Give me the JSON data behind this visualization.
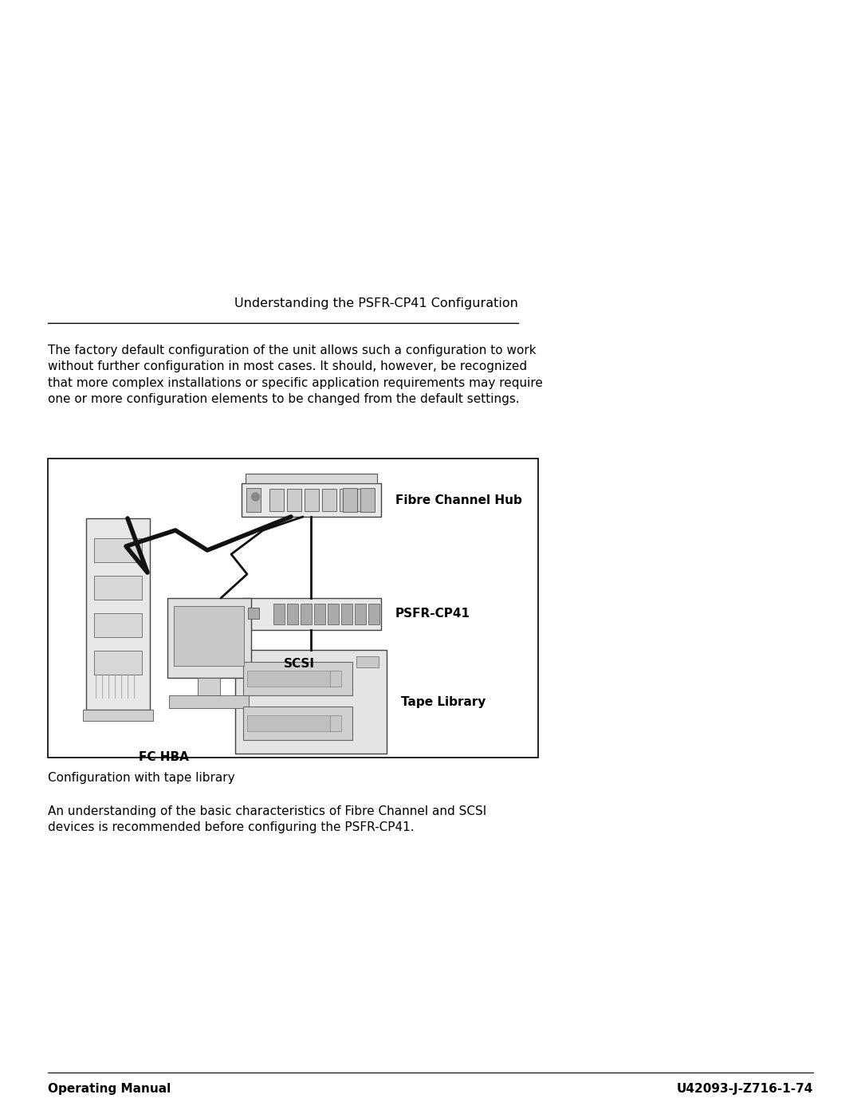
{
  "bg_color": "#ffffff",
  "page_width": 10.8,
  "page_height": 13.97,
  "header_title": "Understanding the PSFR-CP41 Configuration",
  "body_text_1": "The factory default configuration of the unit allows such a configuration to work\nwithout further configuration in most cases. It should, however, be recognized\nthat more complex installations or specific application requirements may require\none or more configuration elements to be changed from the default settings.",
  "caption_text": "Configuration with tape library",
  "body_text_2": "An understanding of the basic characteristics of Fibre Channel and SCSI\ndevices is recommended before configuring the PSFR-CP41.",
  "footer_left": "Operating Manual",
  "footer_right": "U42093-J-Z716-1-74",
  "label_fibre_hub": "Fibre Channel Hub",
  "label_psfr": "PSFR-CP41",
  "label_scsi": "SCSI",
  "label_tape": "Tape Library",
  "label_fc_hba": "FC HBA"
}
